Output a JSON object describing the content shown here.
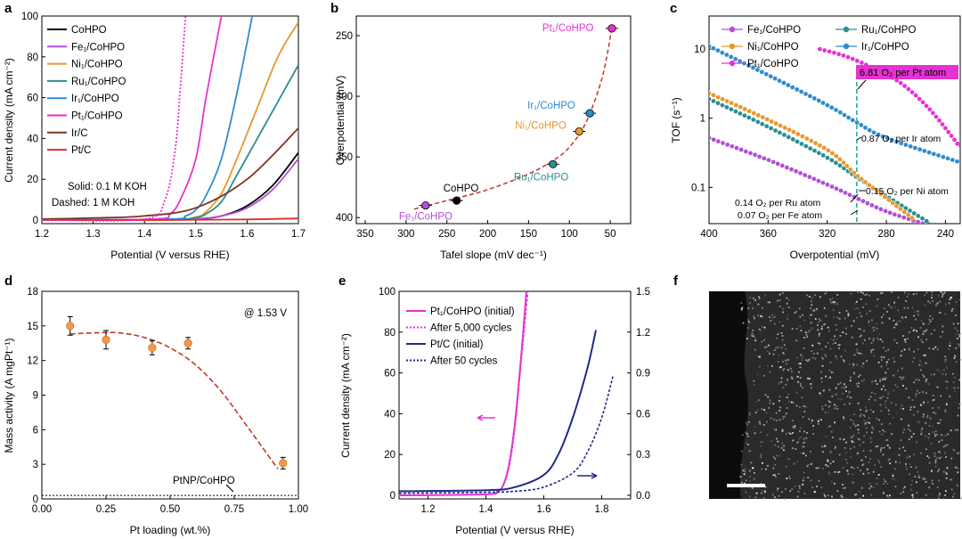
{
  "panel_letters": {
    "a": "a",
    "b": "b",
    "c": "c",
    "d": "d",
    "e": "e",
    "f": "f"
  },
  "colors": {
    "CoHPO": "#000000",
    "Fe": "#b24fd6",
    "Ni": "#e8982c",
    "Ru": "#2a8f8f",
    "Ir": "#2f8ccf",
    "Pt": "#e632d2",
    "IrC": "#7d3521",
    "PtC": "#d8302a",
    "trend": "#c0392b",
    "navy": "#1f2a8a",
    "orange_marker": "#f0994a",
    "tof_highlight": "#e632d2",
    "guide": "#1aa39a"
  },
  "chart_data": [
    {
      "panel": "a",
      "type": "line",
      "xlabel": "Potential (V versus RHE)",
      "ylabel": "Current density (mA cm⁻²)",
      "xlim": [
        1.2,
        1.7
      ],
      "ylim": [
        0,
        100
      ],
      "xticks": [
        "1.2",
        "1.3",
        "1.4",
        "1.5",
        "1.6",
        "1.7"
      ],
      "yticks": [
        "0",
        "20",
        "40",
        "60",
        "80",
        "100"
      ],
      "annotations": [
        "Solid: 0.1 M KOH",
        "Dashed: 1 M KOH"
      ],
      "legend_placement": "top-left",
      "series": [
        {
          "name": "CoHPO",
          "key": "CoHPO",
          "x": [
            1.2,
            1.4,
            1.5,
            1.55,
            1.6,
            1.65,
            1.7
          ],
          "values": [
            0,
            0.1,
            0.5,
            2,
            7,
            17,
            33
          ]
        },
        {
          "name": "Fe₁/CoHPO",
          "key": "Fe",
          "x": [
            1.2,
            1.4,
            1.5,
            1.55,
            1.6,
            1.65,
            1.7
          ],
          "values": [
            0,
            0.1,
            0.6,
            2,
            6,
            15,
            30
          ]
        },
        {
          "name": "Ni₁/CoHPO",
          "key": "Ni",
          "x": [
            1.2,
            1.45,
            1.5,
            1.52,
            1.55,
            1.58,
            1.62,
            1.66,
            1.7
          ],
          "values": [
            0,
            0.3,
            1.5,
            4,
            13,
            30,
            55,
            80,
            97
          ]
        },
        {
          "name": "Ru₁/CoHPO",
          "key": "Ru",
          "x": [
            1.2,
            1.45,
            1.5,
            1.52,
            1.55,
            1.58,
            1.62,
            1.66,
            1.7
          ],
          "values": [
            0,
            0.3,
            1.2,
            3,
            9,
            22,
            40,
            58,
            76
          ]
        },
        {
          "name": "Ir₁/CoHPO",
          "key": "Ir",
          "x": [
            1.2,
            1.45,
            1.48,
            1.5,
            1.52,
            1.55,
            1.58,
            1.61
          ],
          "values": [
            0,
            0.5,
            2,
            5,
            12,
            30,
            62,
            100
          ]
        },
        {
          "name": "Pt₁/CoHPO",
          "key": "Pt",
          "x": [
            1.2,
            1.42,
            1.45,
            1.47,
            1.5,
            1.52,
            1.55
          ],
          "values": [
            0,
            0.5,
            3,
            10,
            30,
            60,
            100
          ]
        },
        {
          "name": "Ir/C",
          "key": "IrC",
          "x": [
            1.2,
            1.3,
            1.4,
            1.5,
            1.6,
            1.7
          ],
          "values": [
            0.5,
            1,
            2,
            6,
            20,
            45
          ]
        },
        {
          "name": "Pt/C",
          "key": "PtC",
          "x": [
            1.2,
            1.45,
            1.6,
            1.7
          ],
          "values": [
            0,
            0,
            0.3,
            0.8
          ]
        },
        {
          "name": "",
          "key": "Pt",
          "dashed": true,
          "x": [
            1.2,
            1.4,
            1.44,
            1.46,
            1.47,
            1.48
          ],
          "values": [
            0,
            0.5,
            10,
            35,
            65,
            100
          ]
        }
      ]
    },
    {
      "panel": "b",
      "type": "scatter",
      "xlabel": "Tafel slope (mV dec⁻¹)",
      "ylabel": "Overpotential (mV)",
      "xlim": [
        350,
        25
      ],
      "ylim": [
        250,
        405
      ],
      "xticks": [
        "350",
        "300",
        "250",
        "200",
        "150",
        "100",
        "50"
      ],
      "yticks": [
        "250",
        "300",
        "350",
        "400"
      ],
      "points": [
        {
          "name": "Pt₁/CoHPO",
          "key": "Pt",
          "x": 48,
          "y": 244
        },
        {
          "name": "Ir₁/CoHPO",
          "key": "Ir",
          "x": 75,
          "y": 314
        },
        {
          "name": "Ni₁/CoHPO",
          "key": "Ni",
          "x": 88,
          "y": 329
        },
        {
          "name": "Ru₁/CoHPO",
          "key": "Ru",
          "x": 120,
          "y": 356
        },
        {
          "name": "CoHPO",
          "key": "CoHPO",
          "x": 238,
          "y": 386
        },
        {
          "name": "Fe₁/CoHPO",
          "key": "Fe",
          "x": 276,
          "y": 390
        }
      ],
      "trend_x": [
        290,
        250,
        200,
        150,
        120,
        100,
        80,
        60,
        48
      ],
      "trend_y": [
        393,
        386,
        377,
        364,
        353,
        342,
        322,
        285,
        244
      ]
    },
    {
      "panel": "c",
      "type": "line",
      "xlabel": "Overpotential (mV)",
      "ylabel": "TOF (s⁻¹)",
      "xlim": [
        400,
        230
      ],
      "ylim": [
        0.03,
        30
      ],
      "yscale": "log",
      "xticks": [
        "400",
        "360",
        "320",
        "280",
        "240"
      ],
      "yticks": [
        "0.1",
        "1",
        "10"
      ],
      "legend_placement": "top",
      "series": [
        {
          "name": "Fe₁/CoHPO",
          "key": "Fe",
          "x": [
            400,
            360,
            320,
            300,
            280,
            255
          ],
          "values": [
            0.52,
            0.25,
            0.11,
            0.07,
            0.045,
            0.03
          ]
        },
        {
          "name": "Ru₁/CoHPO",
          "key": "Ru",
          "x": [
            400,
            360,
            320,
            300,
            280,
            250
          ],
          "values": [
            1.9,
            0.75,
            0.27,
            0.14,
            0.075,
            0.03
          ]
        },
        {
          "name": "Ni₁/CoHPO",
          "key": "Ni",
          "x": [
            400,
            360,
            320,
            300,
            280,
            260
          ],
          "values": [
            2.3,
            0.95,
            0.35,
            0.15,
            0.07,
            0.033
          ]
        },
        {
          "name": "Ir₁/CoHPO",
          "key": "Ir",
          "x": [
            400,
            360,
            320,
            300,
            280,
            230
          ],
          "values": [
            11,
            4.2,
            1.55,
            0.87,
            0.52,
            0.23
          ]
        },
        {
          "name": "Pt₁/CoHPO",
          "key": "Pt",
          "x": [
            325,
            310,
            300,
            290,
            270,
            250,
            230
          ],
          "values": [
            10,
            8.2,
            6.81,
            5.4,
            3.2,
            1.3,
            0.38
          ]
        }
      ],
      "marked_overpotential": 300,
      "annotations": [
        "6.81 O₂ per Pt atom",
        "0.87 O₂ per Ir atom",
        "0.15 O₂ per Ni atom",
        "0.14 O₂ per Ru atom",
        "0.07 O₂ per Fe atom"
      ]
    },
    {
      "panel": "d",
      "type": "scatter",
      "xlabel": "Pt loading (wt.%)",
      "ylabel": "Mass activity (A mgPt⁻¹)",
      "xlim": [
        0,
        1.0
      ],
      "ylim": [
        0,
        18
      ],
      "xticks": [
        "0.00",
        "0.25",
        "0.50",
        "0.75",
        "1.00"
      ],
      "yticks": [
        "0",
        "3",
        "6",
        "9",
        "12",
        "15",
        "18"
      ],
      "annotation": "@ 1.53 V",
      "reference_label": "PtNP/CoHPO",
      "reference_value": 0.3,
      "points": [
        {
          "x": 0.11,
          "y": 15.0,
          "err": 0.8
        },
        {
          "x": 0.25,
          "y": 13.8,
          "err": 0.8
        },
        {
          "x": 0.43,
          "y": 13.1,
          "err": 0.6
        },
        {
          "x": 0.57,
          "y": 13.5,
          "err": 0.5
        },
        {
          "x": 0.94,
          "y": 3.1,
          "err": 0.5
        }
      ],
      "trend_x": [
        0.11,
        0.2,
        0.3,
        0.4,
        0.5,
        0.6,
        0.7,
        0.8,
        0.92
      ],
      "trend_y": [
        14.3,
        14.4,
        14.4,
        14.0,
        13.1,
        11.6,
        9.3,
        6.3,
        2.6
      ]
    },
    {
      "panel": "e",
      "type": "line",
      "xlabel": "Potential (V versus RHE)",
      "ylabel": "Current density (mA cm⁻²)",
      "xlim": [
        1.1,
        1.9
      ],
      "ylim": [
        0,
        100
      ],
      "y2lim": [
        0,
        1.5
      ],
      "xticks": [
        "1.2",
        "1.4",
        "1.6",
        "1.8"
      ],
      "yticks": [
        "0",
        "20",
        "40",
        "60",
        "80",
        "100"
      ],
      "y2ticks": [
        "0.0",
        "0.3",
        "0.6",
        "0.9",
        "1.2",
        "1.5"
      ],
      "legend_placement": "top-left",
      "series": [
        {
          "name": "Pt₁/CoHPO (initial)",
          "key": "Pt",
          "dashed": false,
          "x": [
            1.1,
            1.4,
            1.44,
            1.46,
            1.48,
            1.5,
            1.52,
            1.54
          ],
          "values": [
            0,
            0.5,
            2,
            5,
            15,
            35,
            65,
            100
          ]
        },
        {
          "name": "After 5,000 cycles",
          "key": "Pt",
          "dashed": true,
          "x": [
            1.1,
            1.4,
            1.44,
            1.46,
            1.48,
            1.5,
            1.52,
            1.545
          ],
          "values": [
            0,
            0.5,
            2,
            5,
            14,
            33,
            63,
            100
          ]
        },
        {
          "name": "Pt/C (initial)",
          "key": "navy",
          "dashed": false,
          "x": [
            1.1,
            1.4,
            1.5,
            1.6,
            1.65,
            1.7,
            1.75,
            1.78
          ],
          "values": [
            2,
            2.5,
            4,
            10,
            20,
            38,
            62,
            81
          ]
        },
        {
          "name": "After 50 cycles",
          "key": "navy",
          "dashed": true,
          "x": [
            1.1,
            1.4,
            1.5,
            1.6,
            1.7,
            1.75,
            1.8,
            1.84
          ],
          "values": [
            1,
            1.5,
            2,
            4,
            11,
            21,
            38,
            59
          ]
        }
      ]
    }
  ]
}
